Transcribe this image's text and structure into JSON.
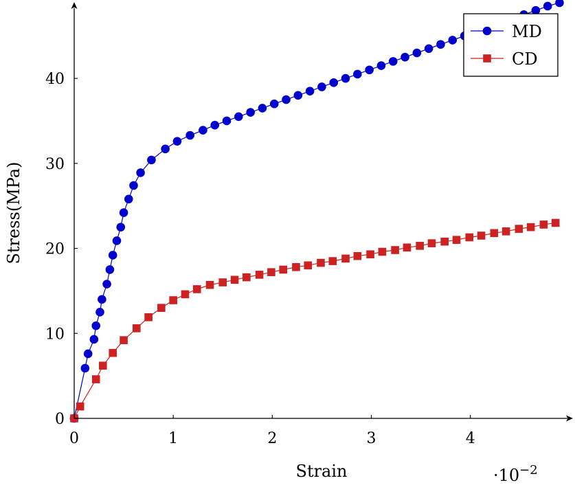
{
  "chart_data": {
    "type": "line",
    "title": "",
    "xlabel": "Strain",
    "ylabel": "Stress(MPa)",
    "x_scale_label": "·10",
    "x_scale_exponent": "−2",
    "xlim": [
      0,
      4.98
    ],
    "ylim": [
      0,
      48.9
    ],
    "x_ticks": [
      0,
      1,
      2,
      3,
      4
    ],
    "y_ticks": [
      0,
      10,
      20,
      30,
      40
    ],
    "legend_position": "top-right",
    "series": [
      {
        "name": "MD",
        "color": "#0000cc",
        "marker": "circle",
        "x": [
          0,
          0.11,
          0.14,
          0.2,
          0.22,
          0.26,
          0.28,
          0.33,
          0.36,
          0.39,
          0.43,
          0.47,
          0.5,
          0.55,
          0.6,
          0.67,
          0.78,
          0.92,
          1.04,
          1.17,
          1.3,
          1.42,
          1.54,
          1.66,
          1.78,
          1.9,
          2.02,
          2.14,
          2.26,
          2.38,
          2.5,
          2.62,
          2.74,
          2.86,
          2.98,
          3.1,
          3.22,
          3.34,
          3.46,
          3.58,
          3.7,
          3.82,
          3.94,
          4.06,
          4.18,
          4.3,
          4.42,
          4.54,
          4.66,
          4.78,
          4.9
        ],
        "y": [
          0,
          5.9,
          7.6,
          9.3,
          10.9,
          12.5,
          14.0,
          15.8,
          17.5,
          19.2,
          20.9,
          22.5,
          24.2,
          25.8,
          27.4,
          28.9,
          30.4,
          31.7,
          32.6,
          33.3,
          33.9,
          34.5,
          35.0,
          35.5,
          36.0,
          36.5,
          37.0,
          37.5,
          38.0,
          38.5,
          39.0,
          39.5,
          40.0,
          40.5,
          41.0,
          41.5,
          42.0,
          42.5,
          43.0,
          43.5,
          44.0,
          44.5,
          45.0,
          45.5,
          46.0,
          46.5,
          47.0,
          47.5,
          48.0,
          48.5,
          48.9
        ]
      },
      {
        "name": "CD",
        "color": "#cc2222",
        "marker": "square",
        "x": [
          0,
          0.06,
          0.22,
          0.29,
          0.39,
          0.5,
          0.63,
          0.75,
          0.88,
          1.0,
          1.12,
          1.24,
          1.37,
          1.5,
          1.62,
          1.74,
          1.87,
          1.99,
          2.11,
          2.24,
          2.36,
          2.49,
          2.61,
          2.74,
          2.86,
          2.99,
          3.11,
          3.24,
          3.36,
          3.49,
          3.61,
          3.74,
          3.86,
          3.99,
          4.11,
          4.24,
          4.36,
          4.49,
          4.61,
          4.74,
          4.86
        ],
        "y": [
          0,
          1.4,
          4.6,
          6.2,
          7.7,
          9.2,
          10.6,
          11.9,
          13.0,
          13.9,
          14.6,
          15.2,
          15.7,
          16.0,
          16.3,
          16.6,
          16.9,
          17.2,
          17.5,
          17.8,
          18.0,
          18.3,
          18.5,
          18.8,
          19.1,
          19.3,
          19.6,
          19.8,
          20.1,
          20.3,
          20.6,
          20.8,
          21.0,
          21.3,
          21.5,
          21.8,
          22.0,
          22.3,
          22.5,
          22.8,
          23.0
        ]
      }
    ]
  }
}
